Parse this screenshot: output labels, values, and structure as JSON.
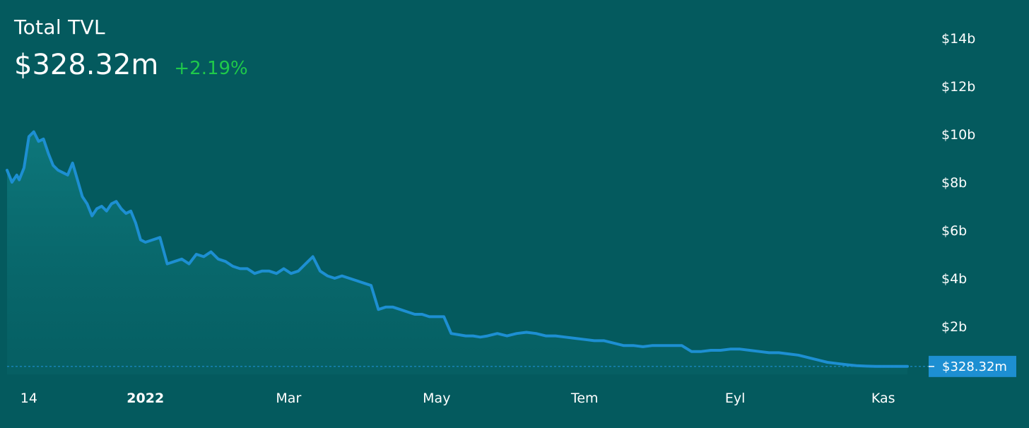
{
  "header": {
    "title": "Total TVL",
    "value": "$328.32m",
    "change": "+2.19%"
  },
  "colors": {
    "background": "#045a5e",
    "line": "#1d8fd2",
    "change_positive": "#1fc94a",
    "price_tag": "#1d8fd2"
  },
  "chart_data": {
    "type": "area",
    "x_ticks": [
      {
        "label": "14",
        "date": "2021-11-14",
        "bold": false
      },
      {
        "label": "2022",
        "date": "2022-01-01",
        "bold": true
      },
      {
        "label": "Mar",
        "date": "2022-03-01",
        "bold": false
      },
      {
        "label": "May",
        "date": "2022-05-01",
        "bold": false
      },
      {
        "label": "Tem",
        "date": "2022-07-01",
        "bold": false
      },
      {
        "label": "Eyl",
        "date": "2022-09-01",
        "bold": false
      },
      {
        "label": "Kas",
        "date": "2022-11-01",
        "bold": false
      }
    ],
    "y_ticks": [
      {
        "label": "$2b",
        "value": 2
      },
      {
        "label": "$4b",
        "value": 4
      },
      {
        "label": "$6b",
        "value": 6
      },
      {
        "label": "$8b",
        "value": 8
      },
      {
        "label": "$10b",
        "value": 10
      },
      {
        "label": "$12b",
        "value": 12
      },
      {
        "label": "$14b",
        "value": 14
      }
    ],
    "ylim": [
      0,
      14
    ],
    "y_unit": "billions USD",
    "current_value": 0.32832,
    "current_label": "$328.32m",
    "series": [
      {
        "x": [
          "2021-11-05",
          "2021-11-07",
          "2021-11-09",
          "2021-11-10",
          "2021-11-12",
          "2021-11-14",
          "2021-11-16",
          "2021-11-18",
          "2021-11-20",
          "2021-11-22",
          "2021-11-24",
          "2021-11-26",
          "2021-11-28",
          "2021-11-30",
          "2021-12-02",
          "2021-12-04",
          "2021-12-06",
          "2021-12-08",
          "2021-12-10",
          "2021-12-12",
          "2021-12-14",
          "2021-12-16",
          "2021-12-18",
          "2021-12-20",
          "2021-12-22",
          "2021-12-24",
          "2021-12-26",
          "2021-12-28",
          "2021-12-30",
          "2022-01-01",
          "2022-01-04",
          "2022-01-07",
          "2022-01-10",
          "2022-01-13",
          "2022-01-16",
          "2022-01-19",
          "2022-01-22",
          "2022-01-25",
          "2022-01-28",
          "2022-01-31",
          "2022-02-03",
          "2022-02-06",
          "2022-02-09",
          "2022-02-12",
          "2022-02-15",
          "2022-02-18",
          "2022-02-21",
          "2022-02-24",
          "2022-02-27",
          "2022-03-02",
          "2022-03-05",
          "2022-03-08",
          "2022-03-11",
          "2022-03-14",
          "2022-03-17",
          "2022-03-20",
          "2022-03-23",
          "2022-03-26",
          "2022-03-29",
          "2022-04-01",
          "2022-04-04",
          "2022-04-07",
          "2022-04-10",
          "2022-04-13",
          "2022-04-16",
          "2022-04-19",
          "2022-04-22",
          "2022-04-25",
          "2022-04-28",
          "2022-05-01",
          "2022-05-04",
          "2022-05-07",
          "2022-05-10",
          "2022-05-13",
          "2022-05-16",
          "2022-05-19",
          "2022-05-22",
          "2022-05-26",
          "2022-05-30",
          "2022-06-03",
          "2022-06-07",
          "2022-06-11",
          "2022-06-15",
          "2022-06-19",
          "2022-06-23",
          "2022-06-27",
          "2022-07-01",
          "2022-07-05",
          "2022-07-09",
          "2022-07-13",
          "2022-07-17",
          "2022-07-21",
          "2022-07-25",
          "2022-07-29",
          "2022-08-02",
          "2022-08-06",
          "2022-08-10",
          "2022-08-14",
          "2022-08-18",
          "2022-08-22",
          "2022-08-26",
          "2022-08-30",
          "2022-09-03",
          "2022-09-07",
          "2022-09-11",
          "2022-09-15",
          "2022-09-19",
          "2022-09-23",
          "2022-09-27",
          "2022-10-01",
          "2022-10-05",
          "2022-10-09",
          "2022-10-13",
          "2022-10-17",
          "2022-10-21",
          "2022-10-25",
          "2022-10-29",
          "2022-11-02",
          "2022-11-06",
          "2022-11-09",
          "2022-11-11"
        ],
        "y": [
          8.5,
          8.0,
          8.3,
          8.1,
          8.6,
          9.9,
          10.1,
          9.7,
          9.8,
          9.2,
          8.7,
          8.5,
          8.4,
          8.3,
          8.8,
          8.1,
          7.4,
          7.1,
          6.6,
          6.9,
          7.0,
          6.8,
          7.1,
          7.2,
          6.9,
          6.7,
          6.8,
          6.3,
          5.6,
          5.5,
          5.6,
          5.7,
          4.6,
          4.7,
          4.8,
          4.6,
          5.0,
          4.9,
          5.1,
          4.8,
          4.7,
          4.5,
          4.4,
          4.4,
          4.2,
          4.3,
          4.3,
          4.2,
          4.4,
          4.2,
          4.3,
          4.6,
          4.9,
          4.3,
          4.1,
          4.0,
          4.1,
          4.0,
          3.9,
          3.8,
          3.7,
          2.7,
          2.8,
          2.8,
          2.7,
          2.6,
          2.5,
          2.5,
          2.4,
          2.4,
          2.4,
          1.7,
          1.65,
          1.6,
          1.6,
          1.55,
          1.6,
          1.7,
          1.6,
          1.7,
          1.75,
          1.7,
          1.6,
          1.6,
          1.55,
          1.5,
          1.45,
          1.4,
          1.4,
          1.3,
          1.2,
          1.2,
          1.15,
          1.2,
          1.2,
          1.2,
          1.2,
          0.95,
          0.95,
          1.0,
          1.0,
          1.05,
          1.05,
          1.0,
          0.95,
          0.9,
          0.9,
          0.85,
          0.8,
          0.7,
          0.6,
          0.5,
          0.45,
          0.4,
          0.36,
          0.34,
          0.33,
          0.33,
          0.33,
          0.33,
          0.3283
        ]
      }
    ]
  }
}
